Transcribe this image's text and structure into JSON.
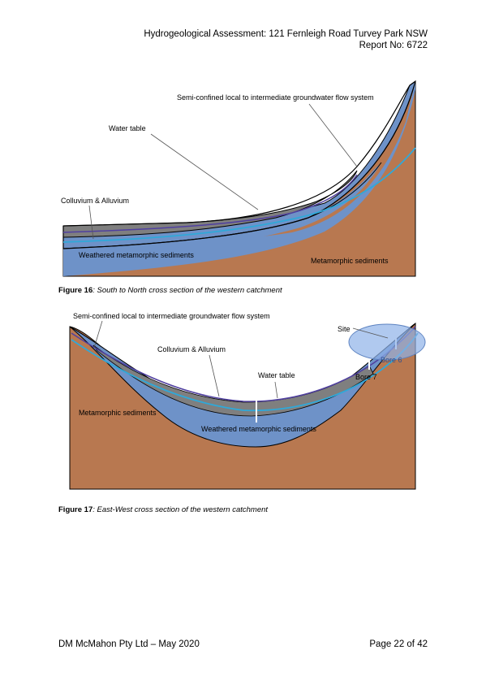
{
  "header": {
    "line1": "Hydrogeological Assessment: 121 Fernleigh Road Turvey Park NSW",
    "line2": "Report No: 6722"
  },
  "figure16": {
    "labels": {
      "semi_confined": "Semi-confined local to intermediate groundwater flow system",
      "water_table": "Water table",
      "colluvium": "Colluvium & Alluvium",
      "weathered": "Weathered metamorphic sediments",
      "metamorphic": "Metamorphic sediments"
    },
    "caption_num": "Figure 16",
    "caption_text": ": South to North cross section of the western catchment"
  },
  "figure17": {
    "labels": {
      "semi_confined": "Semi-confined local to intermediate groundwater flow system",
      "site": "Site",
      "colluvium": "Colluvium & Alluvium",
      "water_table": "Water table",
      "bore6": "Bore 6",
      "bore7": "Bore 7",
      "metamorphic": "Metamorphic sediments",
      "weathered": "Weathered metamorphic sediments"
    },
    "caption_num": "Figure 17",
    "caption_text": ": East-West cross section of the western catchment"
  },
  "footer": {
    "left": "DM McMahon Pty Ltd – May 2020",
    "right": "Page 22 of 42"
  },
  "colors": {
    "bedrock": "#b87850",
    "weathered": "#6e92c8",
    "colluvium": "#7f7f7f",
    "water_table": "#30a8d8",
    "flow_line": "#5040a0"
  }
}
